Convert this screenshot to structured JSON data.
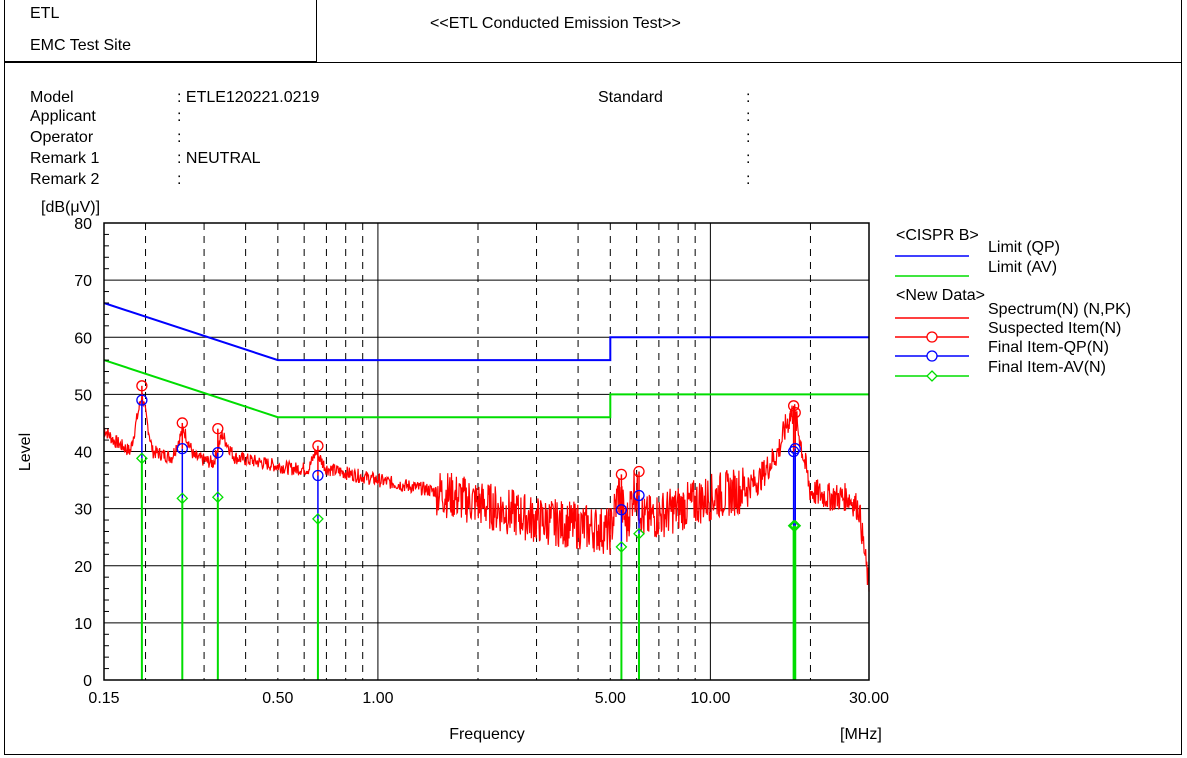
{
  "header": {
    "org": "ETL",
    "site": "EMC Test Site",
    "title": "<<ETL Conducted Emission Test>>"
  },
  "info": {
    "model_label": "Model",
    "model_value": ": ETLE120221.0219",
    "applicant_label": "Applicant",
    "applicant_value": ":",
    "operator_label": "Operator",
    "operator_value": ":",
    "remark1_label": "Remark 1",
    "remark1_value": ": NEUTRAL",
    "remark2_label": "Remark 2",
    "remark2_value": ":",
    "standard_label": "Standard",
    "standard_colons": [
      ":",
      ":",
      ":",
      ":",
      ":"
    ]
  },
  "chart_data": {
    "type": "line",
    "xscale": "log",
    "xlim": [
      0.15,
      30
    ],
    "ylim": [
      0,
      80
    ],
    "ylabel": "Level",
    "yunit": "[dB(μV)]",
    "xlabel": "Frequency",
    "xunit": "[MHz]",
    "yticks": [
      "0",
      "10",
      "20",
      "30",
      "40",
      "50",
      "60",
      "70",
      "80"
    ],
    "xticks": [
      {
        "value": 0.15,
        "label": "0.15"
      },
      {
        "value": 0.5,
        "label": "0.50"
      },
      {
        "value": 1.0,
        "label": "1.00"
      },
      {
        "value": 5.0,
        "label": "5.00"
      },
      {
        "value": 10.0,
        "label": "10.00"
      },
      {
        "value": 30.0,
        "label": "30.00"
      }
    ],
    "grid": true,
    "legend": {
      "position": "right",
      "group1": "<CISPR B>",
      "group2": "<New Data>",
      "entries": [
        {
          "name": "Limit (QP)",
          "color": "#0000ff",
          "marker": "none"
        },
        {
          "name": "Limit (AV)",
          "color": "#00dd00",
          "marker": "none"
        },
        {
          "name": "Spectrum(N) (N,PK)",
          "color": "#ff0000",
          "marker": "none"
        },
        {
          "name": "Suspected Item(N)",
          "color": "#ff0000",
          "marker": "circle"
        },
        {
          "name": "Final Item-QP(N)",
          "color": "#0000ff",
          "marker": "circle"
        },
        {
          "name": "Final Item-AV(N)",
          "color": "#00dd00",
          "marker": "diamond"
        }
      ]
    },
    "limit_qp": [
      [
        0.15,
        66
      ],
      [
        0.5,
        56
      ],
      [
        5.0,
        56
      ],
      [
        5.0,
        60
      ],
      [
        30.0,
        60
      ]
    ],
    "limit_av": [
      [
        0.15,
        56
      ],
      [
        0.5,
        46
      ],
      [
        5.0,
        46
      ],
      [
        5.0,
        50
      ],
      [
        30.0,
        50
      ]
    ],
    "spectrum_envelope": [
      [
        0.15,
        44
      ],
      [
        0.16,
        42
      ],
      [
        0.18,
        40
      ],
      [
        0.195,
        50
      ],
      [
        0.21,
        40
      ],
      [
        0.24,
        39
      ],
      [
        0.26,
        44
      ],
      [
        0.28,
        39
      ],
      [
        0.32,
        38
      ],
      [
        0.34,
        43
      ],
      [
        0.37,
        39
      ],
      [
        0.45,
        38
      ],
      [
        0.55,
        37
      ],
      [
        0.62,
        37
      ],
      [
        0.65,
        40
      ],
      [
        0.7,
        37
      ],
      [
        1.0,
        35
      ],
      [
        1.5,
        33
      ],
      [
        2.0,
        31
      ],
      [
        3.0,
        28
      ],
      [
        4.0,
        27
      ],
      [
        5.0,
        26
      ],
      [
        5.3,
        33
      ],
      [
        5.6,
        27
      ],
      [
        5.9,
        34
      ],
      [
        6.3,
        28
      ],
      [
        8.0,
        30
      ],
      [
        10.0,
        32
      ],
      [
        12.0,
        33
      ],
      [
        14.0,
        35
      ],
      [
        16.0,
        40
      ],
      [
        17.0,
        45
      ],
      [
        17.8,
        47
      ],
      [
        18.5,
        43
      ],
      [
        20.0,
        33
      ],
      [
        23.0,
        32
      ],
      [
        26.0,
        32
      ],
      [
        28.0,
        30
      ],
      [
        30.0,
        16
      ]
    ],
    "suspected": [
      {
        "f": 0.195,
        "level": 51.5
      },
      {
        "f": 0.258,
        "level": 45.0
      },
      {
        "f": 0.33,
        "level": 44.0
      },
      {
        "f": 0.66,
        "level": 41.0
      },
      {
        "f": 5.4,
        "level": 36.0
      },
      {
        "f": 6.1,
        "level": 36.5
      },
      {
        "f": 17.8,
        "level": 48.0
      },
      {
        "f": 18.0,
        "level": 46.8
      }
    ],
    "final_qp": [
      {
        "f": 0.195,
        "level": 49.0
      },
      {
        "f": 0.258,
        "level": 40.5
      },
      {
        "f": 0.33,
        "level": 39.8
      },
      {
        "f": 0.66,
        "level": 35.8
      },
      {
        "f": 5.4,
        "level": 29.8
      },
      {
        "f": 6.1,
        "level": 32.3
      },
      {
        "f": 17.8,
        "level": 40.0
      },
      {
        "f": 18.0,
        "level": 40.5
      }
    ],
    "final_av": [
      {
        "f": 0.195,
        "level": 38.8
      },
      {
        "f": 0.258,
        "level": 31.8
      },
      {
        "f": 0.33,
        "level": 32.0
      },
      {
        "f": 0.66,
        "level": 28.2
      },
      {
        "f": 5.4,
        "level": 23.3
      },
      {
        "f": 6.1,
        "level": 25.6
      },
      {
        "f": 17.8,
        "level": 27.0
      },
      {
        "f": 18.0,
        "level": 27.0
      }
    ]
  }
}
